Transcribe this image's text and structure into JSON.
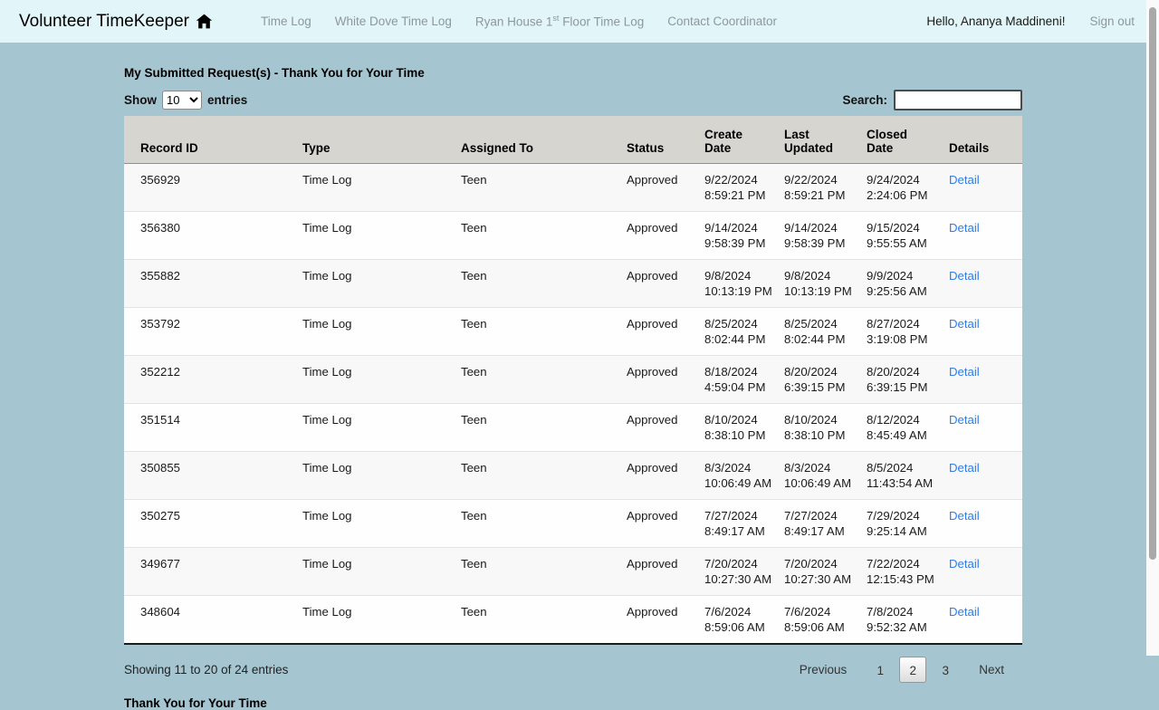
{
  "colors": {
    "page_bg": "#a5c6d1",
    "topbar_bg": "#e2f5f8",
    "table_header_bg": "#d6d5d0",
    "link_blue": "#2b7de9"
  },
  "topbar": {
    "brand": "Volunteer TimeKeeper",
    "nav_time_log": "Time Log",
    "nav_white_dove": "White Dove Time Log",
    "nav_ryan_pre": "Ryan House 1",
    "nav_ryan_sup": "st",
    "nav_ryan_post": " Floor Time Log",
    "nav_contact": "Contact Coordinator",
    "greeting": "Hello, Ananya Maddineni!",
    "sign_out": "Sign out"
  },
  "main": {
    "title": "My Submitted Request(s) - Thank You for Your Time",
    "controls": {
      "show_label": "Show",
      "page_size": "10",
      "entries_label": "entries",
      "search_label": "Search:",
      "search_value": ""
    },
    "table": {
      "columns": [
        "Record ID",
        "Type",
        "Assigned To",
        "Status",
        "Create Date",
        "Last Updated",
        "Closed Date",
        "Details"
      ],
      "detail_link_label": "Detail",
      "rows": [
        {
          "record_id": "356929",
          "type": "Time Log",
          "assigned_to": "Teen",
          "status": "Approved",
          "create_date": "9/22/2024",
          "create_time": "8:59:21 PM",
          "updated_date": "9/22/2024",
          "updated_time": "8:59:21 PM",
          "closed_date": "9/24/2024",
          "closed_time": "2:24:06 PM"
        },
        {
          "record_id": "356380",
          "type": "Time Log",
          "assigned_to": "Teen",
          "status": "Approved",
          "create_date": "9/14/2024",
          "create_time": "9:58:39 PM",
          "updated_date": "9/14/2024",
          "updated_time": "9:58:39 PM",
          "closed_date": "9/15/2024",
          "closed_time": "9:55:55 AM"
        },
        {
          "record_id": "355882",
          "type": "Time Log",
          "assigned_to": "Teen",
          "status": "Approved",
          "create_date": "9/8/2024",
          "create_time": "10:13:19 PM",
          "updated_date": "9/8/2024",
          "updated_time": "10:13:19 PM",
          "closed_date": "9/9/2024",
          "closed_time": "9:25:56 AM"
        },
        {
          "record_id": "353792",
          "type": "Time Log",
          "assigned_to": "Teen",
          "status": "Approved",
          "create_date": "8/25/2024",
          "create_time": "8:02:44 PM",
          "updated_date": "8/25/2024",
          "updated_time": "8:02:44 PM",
          "closed_date": "8/27/2024",
          "closed_time": "3:19:08 PM"
        },
        {
          "record_id": "352212",
          "type": "Time Log",
          "assigned_to": "Teen",
          "status": "Approved",
          "create_date": "8/18/2024",
          "create_time": "4:59:04 PM",
          "updated_date": "8/20/2024",
          "updated_time": "6:39:15 PM",
          "closed_date": "8/20/2024",
          "closed_time": "6:39:15 PM"
        },
        {
          "record_id": "351514",
          "type": "Time Log",
          "assigned_to": "Teen",
          "status": "Approved",
          "create_date": "8/10/2024",
          "create_time": "8:38:10 PM",
          "updated_date": "8/10/2024",
          "updated_time": "8:38:10 PM",
          "closed_date": "8/12/2024",
          "closed_time": "8:45:49 AM"
        },
        {
          "record_id": "350855",
          "type": "Time Log",
          "assigned_to": "Teen",
          "status": "Approved",
          "create_date": "8/3/2024",
          "create_time": "10:06:49 AM",
          "updated_date": "8/3/2024",
          "updated_time": "10:06:49 AM",
          "closed_date": "8/5/2024",
          "closed_time": "11:43:54 AM"
        },
        {
          "record_id": "350275",
          "type": "Time Log",
          "assigned_to": "Teen",
          "status": "Approved",
          "create_date": "7/27/2024",
          "create_time": "8:49:17 AM",
          "updated_date": "7/27/2024",
          "updated_time": "8:49:17 AM",
          "closed_date": "7/29/2024",
          "closed_time": "9:25:14 AM"
        },
        {
          "record_id": "349677",
          "type": "Time Log",
          "assigned_to": "Teen",
          "status": "Approved",
          "create_date": "7/20/2024",
          "create_time": "10:27:30 AM",
          "updated_date": "7/20/2024",
          "updated_time": "10:27:30 AM",
          "closed_date": "7/22/2024",
          "closed_time": "12:15:43 PM"
        },
        {
          "record_id": "348604",
          "type": "Time Log",
          "assigned_to": "Teen",
          "status": "Approved",
          "create_date": "7/6/2024",
          "create_time": "8:59:06 AM",
          "updated_date": "7/6/2024",
          "updated_time": "8:59:06 AM",
          "closed_date": "7/8/2024",
          "closed_time": "9:52:32 AM"
        }
      ]
    },
    "summary": "Showing 11 to 20 of 24 entries",
    "pagination": {
      "previous_label": "Previous",
      "pages": [
        "1",
        "2",
        "3"
      ],
      "current_page": "2",
      "next_label": "Next"
    },
    "footer_heading": "Thank You for Your Time"
  }
}
